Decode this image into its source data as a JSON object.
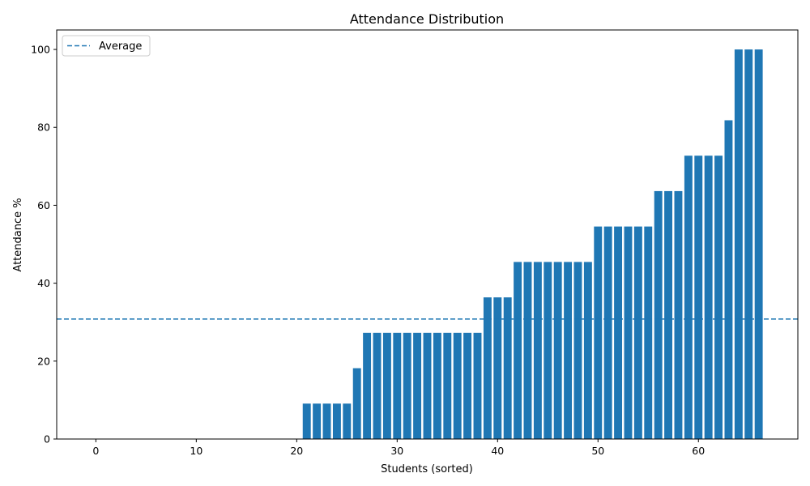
{
  "chart_data": {
    "type": "bar",
    "title": "Attendance Distribution",
    "xlabel": "Students (sorted)",
    "ylabel": "Attendance %",
    "xlim": [
      -3.9,
      69.9
    ],
    "ylim": [
      0,
      105
    ],
    "xticks": [
      0,
      10,
      20,
      30,
      40,
      50,
      60
    ],
    "yticks": [
      0,
      20,
      40,
      60,
      80,
      100
    ],
    "bar_color": "#1f77b4",
    "x": [
      0,
      1,
      2,
      3,
      4,
      5,
      6,
      7,
      8,
      9,
      10,
      11,
      12,
      13,
      14,
      15,
      16,
      17,
      18,
      19,
      20,
      21,
      22,
      23,
      24,
      25,
      26,
      27,
      28,
      29,
      30,
      31,
      32,
      33,
      34,
      35,
      36,
      37,
      38,
      39,
      40,
      41,
      42,
      43,
      44,
      45,
      46,
      47,
      48,
      49,
      50,
      51,
      52,
      53,
      54,
      55,
      56,
      57,
      58,
      59,
      60,
      61,
      62,
      63,
      64,
      65,
      66
    ],
    "values": [
      0,
      0,
      0,
      0,
      0,
      0,
      0,
      0,
      0,
      0,
      0,
      0,
      0,
      0,
      0,
      0,
      0,
      0,
      0,
      0,
      0,
      9.09,
      9.09,
      9.09,
      9.09,
      9.09,
      18.18,
      27.27,
      27.27,
      27.27,
      27.27,
      27.27,
      27.27,
      27.27,
      27.27,
      27.27,
      27.27,
      27.27,
      27.27,
      36.36,
      36.36,
      36.36,
      45.45,
      45.45,
      45.45,
      45.45,
      45.45,
      45.45,
      45.45,
      45.45,
      54.55,
      54.55,
      54.55,
      54.55,
      54.55,
      54.55,
      63.64,
      63.64,
      63.64,
      72.73,
      72.73,
      72.73,
      72.73,
      81.82,
      100,
      100,
      100
    ],
    "average": {
      "label": "Average",
      "value": 30.8,
      "style": "dashed",
      "color": "#1f77b4"
    },
    "legend": {
      "position": "top-left"
    },
    "grid": false
  }
}
